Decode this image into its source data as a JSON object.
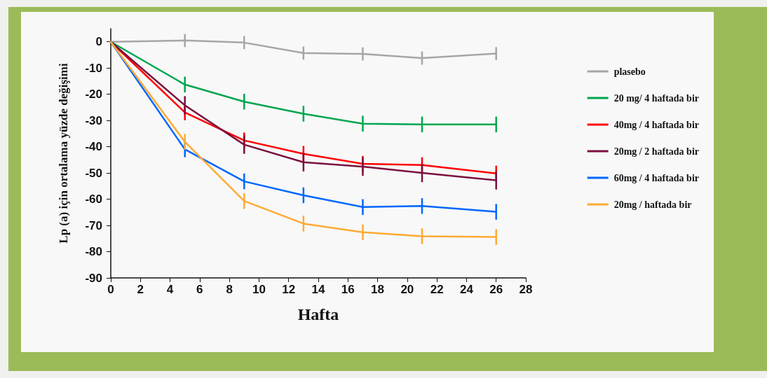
{
  "chart_data": {
    "type": "line",
    "xlabel": "Hafta",
    "ylabel": "Lp (a) için ortalama yüzde değişimi",
    "x": [
      0,
      5,
      9,
      13,
      17,
      21,
      26
    ],
    "xlim": [
      0,
      28
    ],
    "xticks": [
      0,
      2,
      4,
      6,
      8,
      10,
      12,
      14,
      16,
      18,
      20,
      22,
      24,
      26,
      28
    ],
    "ylim": [
      -90,
      5
    ],
    "yticks": [
      -90,
      -80,
      -70,
      -60,
      -50,
      -40,
      -30,
      -20,
      -10,
      0
    ],
    "grid": false,
    "legend": "right",
    "marker": "none",
    "line_style": "solid",
    "series": [
      {
        "name": "plasebo",
        "color": "#a6a6a6",
        "values": [
          0,
          0.5,
          -0.3,
          -4.3,
          -4.6,
          -6.2,
          -4.5
        ],
        "errors": [
          null,
          2.5,
          2.5,
          2.5,
          2.5,
          2.5,
          2.5
        ]
      },
      {
        "name": "20 mg/ 4 haftada bir",
        "color": "#00a64f",
        "values": [
          0,
          -16.3,
          -22.8,
          -27.4,
          -31.2,
          -31.5,
          -31.5
        ],
        "errors": [
          null,
          3,
          3,
          3,
          3,
          3,
          3
        ]
      },
      {
        "name": "40mg / 4 haftada bir",
        "color": "#ff0000",
        "values": [
          0,
          -26.9,
          -37.6,
          -42.7,
          -46.5,
          -47,
          -50.2
        ],
        "errors": [
          null,
          3,
          3,
          3,
          3,
          3,
          3
        ]
      },
      {
        "name": "20mg / 2 haftada bir",
        "color": "#7b1040",
        "values": [
          0,
          -24.2,
          -39.2,
          -45.9,
          -47.6,
          -50,
          -52.8
        ],
        "errors": [
          null,
          3.5,
          3.5,
          3.5,
          3.5,
          3.5,
          3.5
        ]
      },
      {
        "name": "60mg / 4 haftada bir",
        "color": "#0066ff",
        "values": [
          0,
          -41,
          -53.2,
          -58.5,
          -63,
          -62.6,
          -64.8
        ],
        "errors": [
          null,
          3,
          3,
          3,
          3,
          3,
          3
        ]
      },
      {
        "name": "20mg / haftada bir",
        "color": "#ffaa33",
        "values": [
          0,
          -38.1,
          -60.7,
          -69.3,
          -72.6,
          -74.1,
          -74.4
        ],
        "errors": [
          null,
          3,
          3,
          3,
          3,
          3,
          3
        ]
      }
    ]
  }
}
